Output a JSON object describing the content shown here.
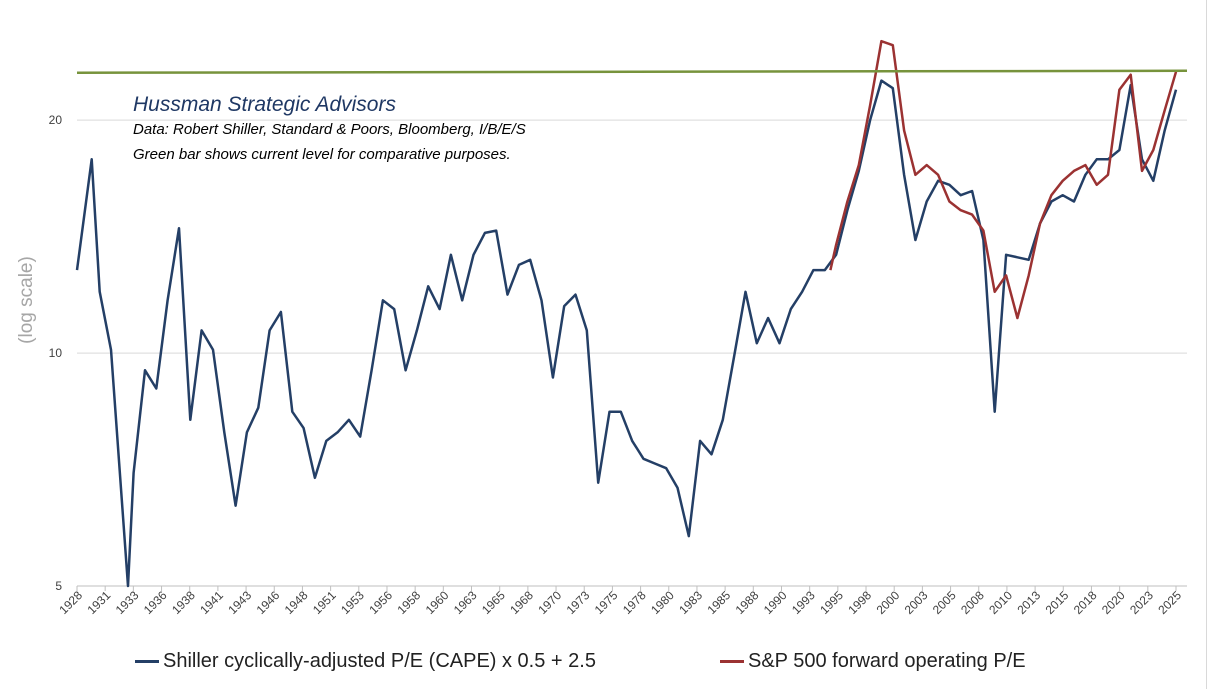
{
  "annotations": {
    "title": "Hussman Strategic Advisors",
    "source": "Data: Robert Shiller, Standard & Poors, Bloomberg, I/B/E/S",
    "note": "Green bar shows current level for comparative purposes."
  },
  "chart_data": {
    "type": "line",
    "ylabel": "(log scale)",
    "xlabel": "",
    "yscale": "log",
    "ylim": [
      5,
      28.6
    ],
    "xlim": [
      1928,
      2025.9
    ],
    "grid": "horizontal",
    "legend_position": "bottom",
    "y_ticks": [
      "5",
      "10",
      "20"
    ],
    "x_ticks": [
      "1928",
      "1931",
      "1933",
      "1936",
      "1938",
      "1941",
      "1943",
      "1946",
      "1948",
      "1951",
      "1953",
      "1956",
      "1958",
      "1960",
      "1963",
      "1965",
      "1968",
      "1970",
      "1973",
      "1975",
      "1978",
      "1980",
      "1983",
      "1985",
      "1988",
      "1990",
      "1993",
      "1995",
      "1998",
      "2000",
      "2003",
      "2005",
      "2008",
      "2010",
      "2013",
      "2015",
      "2018",
      "2020",
      "2023",
      "2025"
    ],
    "reference_line": {
      "value": 23.1,
      "color": "#77933C"
    },
    "series": [
      {
        "name": "Shiller cyclically-adjusted P/E (CAPE) x 0.5 + 2.5",
        "color": "#243F66",
        "x": [
          1928,
          1929.3,
          1930,
          1931,
          1932.5,
          1933,
          1934,
          1935,
          1936,
          1937,
          1938,
          1939,
          1940,
          1941,
          1942,
          1943,
          1944,
          1945,
          1946,
          1947,
          1948,
          1949,
          1950,
          1951,
          1952,
          1953,
          1954,
          1955,
          1956,
          1957,
          1958,
          1959,
          1960,
          1961,
          1962,
          1963,
          1964,
          1965,
          1966,
          1967,
          1968,
          1969,
          1970,
          1971,
          1972,
          1973,
          1974,
          1975,
          1976,
          1977,
          1978,
          1979,
          1980,
          1981,
          1982,
          1983,
          1984,
          1985,
          1986,
          1987,
          1988,
          1989,
          1990,
          1991,
          1992,
          1993,
          1994,
          1995,
          1996,
          1997,
          1998,
          1999,
          2000,
          2001,
          2002,
          2003,
          2004,
          2005,
          2006,
          2007,
          2008,
          2009,
          2010,
          2011,
          2012,
          2013,
          2014,
          2015,
          2016,
          2017,
          2018,
          2019,
          2020,
          2021,
          2022,
          2023,
          2024,
          2025
        ],
        "y": [
          12.8,
          17.8,
          12.0,
          10.1,
          5.0,
          7.0,
          9.5,
          9.0,
          11.7,
          14.5,
          8.2,
          10.7,
          10.1,
          7.9,
          6.35,
          7.9,
          8.5,
          10.7,
          11.3,
          8.4,
          8.0,
          6.9,
          7.7,
          7.9,
          8.2,
          7.8,
          9.5,
          11.7,
          11.4,
          9.5,
          10.7,
          12.2,
          11.4,
          13.4,
          11.7,
          13.4,
          14.3,
          14.4,
          11.9,
          13.0,
          13.2,
          11.7,
          9.3,
          11.5,
          11.9,
          10.7,
          6.8,
          8.4,
          8.4,
          7.7,
          7.3,
          7.2,
          7.1,
          6.7,
          5.8,
          7.7,
          7.4,
          8.2,
          9.9,
          12.0,
          10.3,
          11.1,
          10.3,
          11.4,
          12.0,
          12.8,
          12.8,
          13.4,
          15.3,
          17.2,
          20.0,
          22.5,
          22.0,
          17.0,
          14.0,
          15.7,
          16.7,
          16.5,
          16.0,
          16.2,
          14.0,
          8.4,
          13.4,
          13.3,
          13.2,
          14.7,
          15.7,
          16.0,
          15.7,
          17.0,
          17.8,
          17.8,
          18.3,
          22.2,
          17.8,
          16.7,
          19.4,
          21.9
        ]
      },
      {
        "name": "S&P 500 forward operating P/E",
        "color": "#9B3232",
        "x": [
          1994.5,
          1995,
          1996,
          1997,
          1998,
          1999,
          2000,
          2001,
          2002,
          2003,
          2004,
          2005,
          2006,
          2007,
          2008,
          2009,
          2010,
          2011,
          2012,
          2013,
          2014,
          2015,
          2016,
          2017,
          2018,
          2019,
          2020,
          2021,
          2022,
          2023,
          2024,
          2025
        ],
        "y": [
          12.8,
          13.8,
          15.7,
          17.5,
          20.9,
          25.3,
          25.0,
          19.4,
          17.0,
          17.5,
          17.0,
          15.7,
          15.3,
          15.1,
          14.4,
          12.0,
          12.6,
          11.1,
          12.6,
          14.7,
          16.0,
          16.7,
          17.2,
          17.5,
          16.5,
          17.0,
          21.9,
          22.9,
          17.2,
          18.3,
          20.6,
          23.1
        ]
      }
    ]
  }
}
